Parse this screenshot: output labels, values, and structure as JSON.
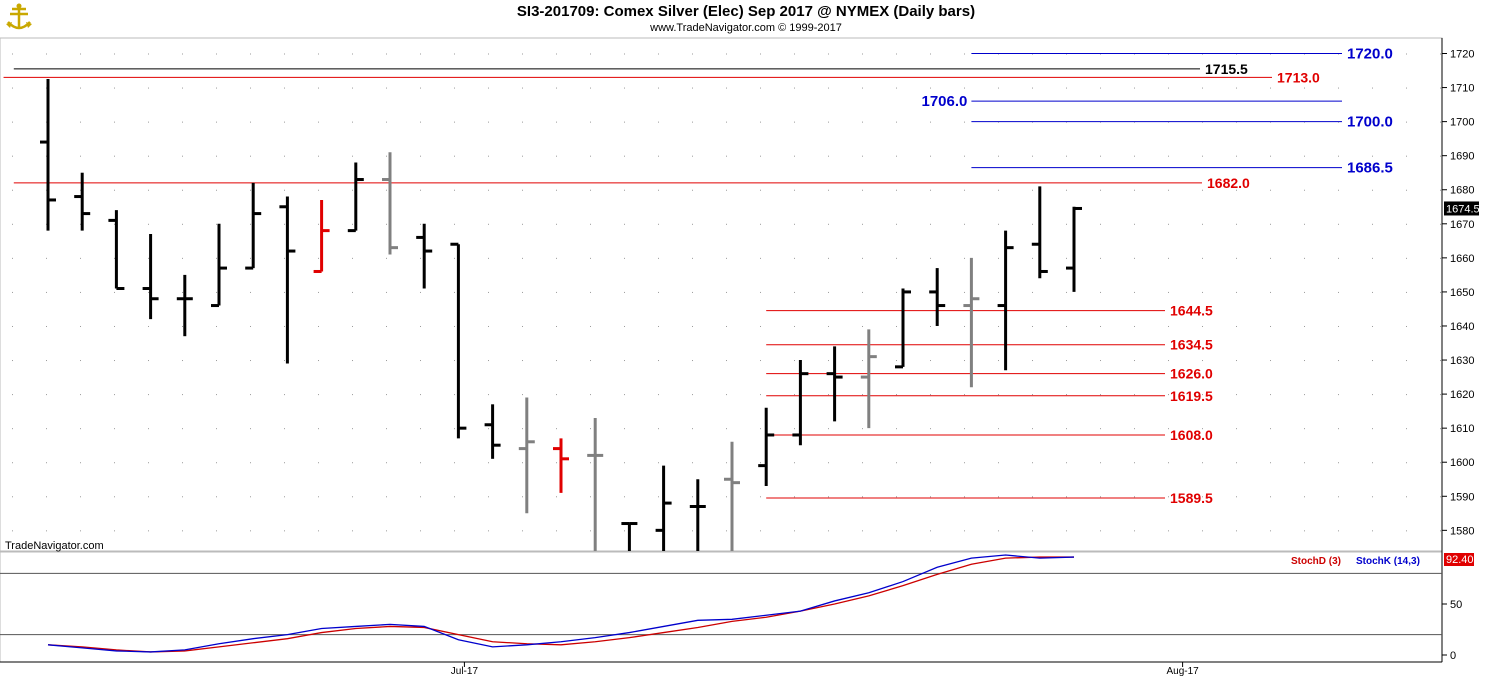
{
  "header": {
    "title": "SI3-201709:  Comex Silver (Elec) Sep 2017 @ NYMEX  (Daily bars)",
    "subtitle": "www.TradeNavigator.com © 1999-2017",
    "watermark": "TradeNavigator.com"
  },
  "colors": {
    "up_bar": "#000000",
    "neutral_bar": "#808080",
    "down_bar": "#e00000",
    "level_red": "#e00000",
    "level_blue": "#0000cc",
    "level_black": "#000000",
    "stoch_d": "#cc0000",
    "stoch_k": "#0000cc",
    "grid": "#9a9a9a"
  },
  "chart_data": [
    {
      "type": "ohlc",
      "title": "SI3-201709: Comex Silver (Elec) Sep 2017 @ NYMEX (Daily bars)",
      "ylim": [
        1570,
        1725
      ],
      "y_ticks": [
        1580,
        1590,
        1600,
        1610,
        1620,
        1630,
        1640,
        1650,
        1660,
        1670,
        1680,
        1690,
        1700,
        1710,
        1720
      ],
      "x_tick_labels": [
        {
          "label": "Jul-17",
          "bar": 12
        },
        {
          "label": "Aug-17",
          "bar": 33
        }
      ],
      "last_price": "1674.5",
      "bars": [
        {
          "o": 1694,
          "h": 1712.5,
          "l": 1668,
          "c": 1677,
          "color": "up"
        },
        {
          "o": 1678,
          "h": 1685,
          "l": 1668,
          "c": 1673,
          "color": "up"
        },
        {
          "o": 1671,
          "h": 1674,
          "l": 1651,
          "c": 1651,
          "color": "up"
        },
        {
          "o": 1651,
          "h": 1667,
          "l": 1642,
          "c": 1648,
          "color": "up"
        },
        {
          "o": 1648,
          "h": 1655,
          "l": 1637,
          "c": 1648,
          "color": "up"
        },
        {
          "o": 1646,
          "h": 1670,
          "l": 1646,
          "c": 1657,
          "color": "up"
        },
        {
          "o": 1657,
          "h": 1682,
          "l": 1657,
          "c": 1673,
          "color": "up"
        },
        {
          "o": 1675,
          "h": 1678,
          "l": 1629,
          "c": 1662,
          "color": "up"
        },
        {
          "o": 1656,
          "h": 1677,
          "l": 1656,
          "c": 1668,
          "color": "down"
        },
        {
          "o": 1668,
          "h": 1688,
          "l": 1668,
          "c": 1683,
          "color": "up"
        },
        {
          "o": 1683,
          "h": 1691,
          "l": 1661,
          "c": 1663,
          "color": "neutral"
        },
        {
          "o": 1666,
          "h": 1670,
          "l": 1651,
          "c": 1662,
          "color": "up"
        },
        {
          "o": 1664,
          "h": 1664,
          "l": 1607,
          "c": 1610,
          "color": "up"
        },
        {
          "o": 1611,
          "h": 1617,
          "l": 1601,
          "c": 1605,
          "color": "up"
        },
        {
          "o": 1604,
          "h": 1619,
          "l": 1585,
          "c": 1606,
          "color": "neutral"
        },
        {
          "o": 1604,
          "h": 1607,
          "l": 1591,
          "c": 1601,
          "color": "down"
        },
        {
          "o": 1602,
          "h": 1613,
          "l": 1570,
          "c": 1602,
          "color": "neutral"
        },
        {
          "o": 1582,
          "h": 1582,
          "l": 1570,
          "c": 1582,
          "color": "up"
        },
        {
          "o": 1580,
          "h": 1599,
          "l": 1570,
          "c": 1588,
          "color": "up"
        },
        {
          "o": 1587,
          "h": 1595,
          "l": 1570,
          "c": 1587,
          "color": "up"
        },
        {
          "o": 1595,
          "h": 1606,
          "l": 1570,
          "c": 1594,
          "color": "neutral"
        },
        {
          "o": 1599,
          "h": 1616,
          "l": 1593,
          "c": 1608,
          "color": "up"
        },
        {
          "o": 1608,
          "h": 1630,
          "l": 1605,
          "c": 1626,
          "color": "up"
        },
        {
          "o": 1626,
          "h": 1634,
          "l": 1612,
          "c": 1625,
          "color": "up"
        },
        {
          "o": 1625,
          "h": 1639,
          "l": 1610,
          "c": 1631,
          "color": "neutral"
        },
        {
          "o": 1628,
          "h": 1651,
          "l": 1628,
          "c": 1650,
          "color": "up"
        },
        {
          "o": 1650,
          "h": 1657,
          "l": 1640,
          "c": 1646,
          "color": "up"
        },
        {
          "o": 1646,
          "h": 1660,
          "l": 1622,
          "c": 1648,
          "color": "neutral"
        },
        {
          "o": 1646,
          "h": 1668,
          "l": 1627,
          "c": 1663,
          "color": "up"
        },
        {
          "o": 1664,
          "h": 1681,
          "l": 1654,
          "c": 1656,
          "color": "up"
        },
        {
          "o": 1657,
          "h": 1675,
          "l": 1650,
          "c": 1674.5,
          "color": "up"
        }
      ],
      "levels": [
        {
          "label": "1720.0",
          "value": 1720.0,
          "color": "blue",
          "x_start_bar": 27
        },
        {
          "label": "1715.5",
          "value": 1715.5,
          "color": "black",
          "x_start_bar": -1
        },
        {
          "label": "1713.0",
          "value": 1713.0,
          "color": "red",
          "x_start_bar": -1.3
        },
        {
          "label": "1706.0",
          "value": 1706.0,
          "color": "blue",
          "x_start_bar": 27,
          "label_side": "left"
        },
        {
          "label": "1700.0",
          "value": 1700.0,
          "color": "blue",
          "x_start_bar": 27
        },
        {
          "label": "1686.5",
          "value": 1686.5,
          "color": "blue",
          "x_start_bar": 27
        },
        {
          "label": "1682.0",
          "value": 1682.0,
          "color": "red",
          "x_start_bar": -1
        },
        {
          "label": "1644.5",
          "value": 1644.5,
          "color": "red",
          "x_start_bar": 21
        },
        {
          "label": "1634.5",
          "value": 1634.5,
          "color": "red",
          "x_start_bar": 21
        },
        {
          "label": "1626.0",
          "value": 1626.0,
          "color": "red",
          "x_start_bar": 21
        },
        {
          "label": "1619.5",
          "value": 1619.5,
          "color": "red",
          "x_start_bar": 21
        },
        {
          "label": "1608.0",
          "value": 1608.0,
          "color": "red",
          "x_start_bar": 21
        },
        {
          "label": "1589.5",
          "value": 1589.5,
          "color": "red",
          "x_start_bar": 21
        }
      ]
    },
    {
      "type": "line",
      "ylim": [
        0,
        100
      ],
      "y_ticks": [
        0,
        50
      ],
      "reference_lines": [
        80,
        20
      ],
      "last_value": "92.40",
      "legend": [
        "StochD (3)",
        "StochK (14,3)"
      ],
      "series": [
        {
          "name": "StochD (3)",
          "color": "red",
          "values": [
            10,
            8,
            5,
            3,
            4,
            8,
            12,
            16,
            22,
            26,
            28,
            27,
            20,
            13,
            11,
            10,
            13,
            17,
            22,
            27,
            33,
            37,
            43,
            50,
            58,
            68,
            79,
            89,
            95,
            96,
            96
          ]
        },
        {
          "name": "StochK (14,3)",
          "color": "blue",
          "values": [
            10,
            7,
            4,
            3,
            5,
            11,
            16,
            20,
            26,
            28,
            30,
            28,
            15,
            8,
            10,
            13,
            17,
            22,
            28,
            34,
            35,
            39,
            43,
            53,
            61,
            72,
            86,
            95,
            98,
            95,
            96
          ]
        }
      ]
    }
  ]
}
